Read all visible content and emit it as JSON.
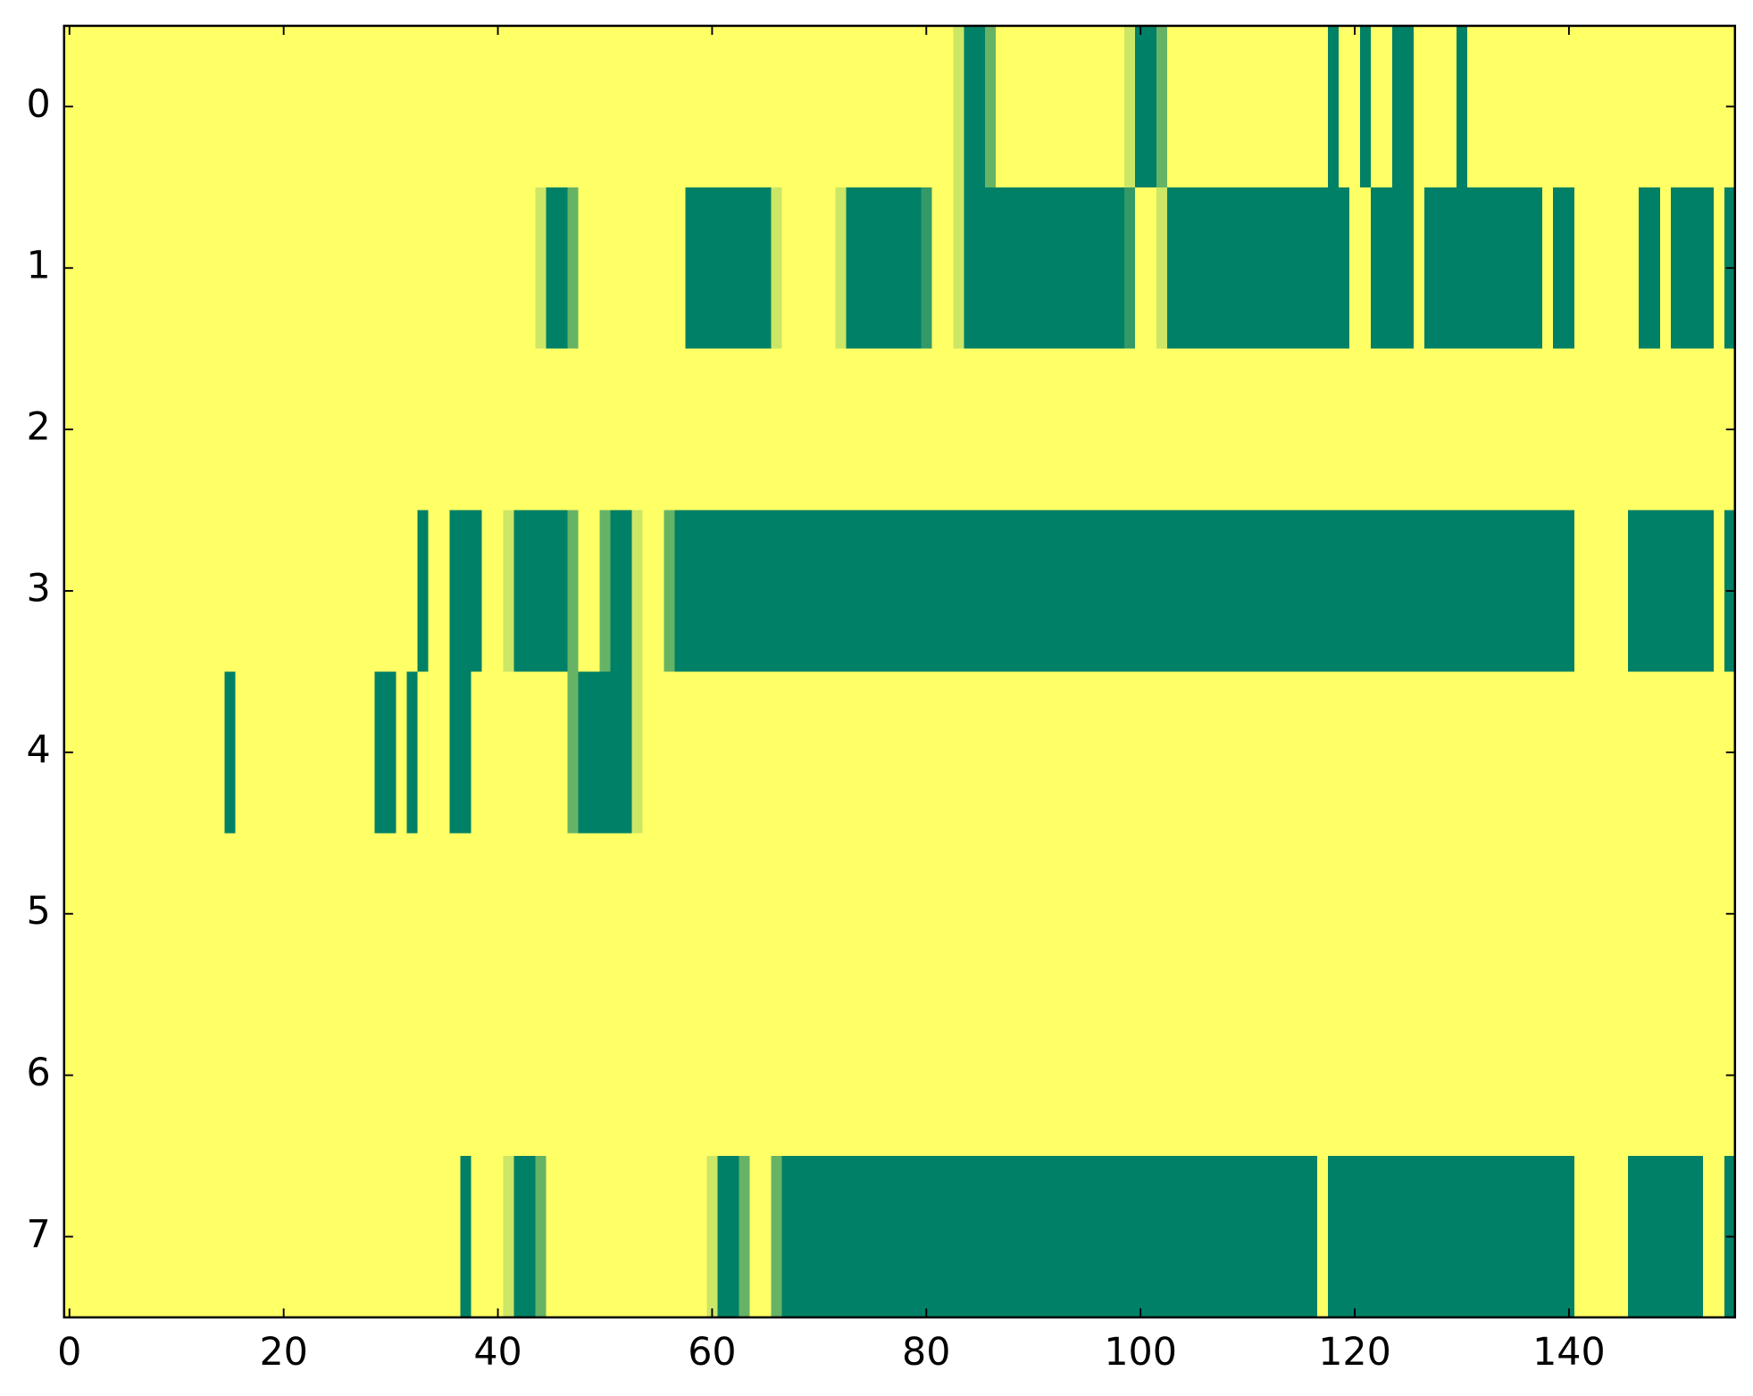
{
  "chart_data": {
    "type": "heatmap",
    "colormap": "summer",
    "xlim": [
      -0.5,
      155.5
    ],
    "ylim": [
      7.5,
      -0.5
    ],
    "xticks": [
      0,
      20,
      40,
      60,
      80,
      100,
      120,
      140
    ],
    "yticks": [
      0,
      1,
      2,
      3,
      4,
      5,
      6,
      7
    ],
    "values": [
      [
        1,
        1,
        1,
        1,
        1,
        1,
        1,
        1,
        1,
        1,
        1,
        1,
        1,
        1,
        1,
        1,
        1,
        1,
        1,
        1,
        1,
        1,
        1,
        1,
        1,
        1,
        1,
        1,
        1,
        1,
        1,
        1,
        1,
        1,
        1,
        1,
        1,
        1,
        1,
        1,
        1,
        1,
        1,
        1,
        1,
        1,
        1,
        1,
        1,
        1,
        1,
        1,
        1,
        1,
        1,
        1,
        1,
        1,
        1,
        1,
        1,
        1,
        1,
        1,
        1,
        1,
        1,
        1,
        1,
        1,
        1,
        1,
        1,
        1,
        1,
        1,
        1,
        1,
        1,
        1,
        1,
        1,
        1,
        0.8,
        0,
        0,
        0.4,
        1,
        1,
        1,
        1,
        1,
        1,
        1,
        1,
        1,
        1,
        1,
        1,
        0.8,
        0,
        0,
        0.4,
        1,
        1,
        1,
        1,
        1,
        1,
        1,
        1,
        1,
        1,
        1,
        1,
        1,
        1,
        1,
        0,
        1,
        1,
        0,
        1,
        1,
        0,
        0,
        1,
        1,
        1,
        1,
        0,
        1,
        1,
        1,
        1,
        1,
        1,
        1,
        1,
        1,
        1,
        1,
        1,
        1,
        1,
        1,
        1,
        1,
        1,
        1,
        1,
        1,
        1,
        1,
        1,
        1
      ],
      [
        1,
        1,
        1,
        1,
        1,
        1,
        1,
        1,
        1,
        1,
        1,
        1,
        1,
        1,
        1,
        1,
        1,
        1,
        1,
        1,
        1,
        1,
        1,
        1,
        1,
        1,
        1,
        1,
        1,
        1,
        1,
        1,
        1,
        1,
        1,
        1,
        1,
        1,
        1,
        1,
        1,
        1,
        1,
        1,
        0.8,
        0,
        0,
        0.4,
        1,
        1,
        1,
        1,
        1,
        1,
        1,
        1,
        1,
        1,
        0,
        0,
        0,
        0,
        0,
        0,
        0,
        0,
        0.8,
        1,
        1,
        1,
        1,
        1,
        0.8,
        0,
        0,
        0,
        0,
        0,
        0,
        0,
        0.2,
        1,
        1,
        0.8,
        0,
        0,
        0,
        0,
        0,
        0,
        0,
        0,
        0,
        0,
        0,
        0,
        0,
        0,
        0,
        0.2,
        1,
        1,
        0.8,
        0,
        0,
        0,
        0,
        0,
        0,
        0,
        0,
        0,
        0,
        0,
        0,
        0,
        0,
        0,
        0,
        0,
        1,
        1,
        0,
        0,
        0,
        0,
        1,
        0,
        0,
        0,
        0,
        0,
        0,
        0,
        0,
        0,
        0,
        0,
        1,
        0,
        0,
        1,
        1,
        1,
        1,
        1,
        1,
        0,
        0,
        1,
        0,
        0,
        0,
        0,
        1,
        0
      ],
      [
        1,
        1,
        1,
        1,
        1,
        1,
        1,
        1,
        1,
        1,
        1,
        1,
        1,
        1,
        1,
        1,
        1,
        1,
        1,
        1,
        1,
        1,
        1,
        1,
        1,
        1,
        1,
        1,
        1,
        1,
        1,
        1,
        1,
        1,
        1,
        1,
        1,
        1,
        1,
        1,
        1,
        1,
        1,
        1,
        1,
        1,
        1,
        1,
        1,
        1,
        1,
        1,
        1,
        1,
        1,
        1,
        1,
        1,
        1,
        1,
        1,
        1,
        1,
        1,
        1,
        1,
        1,
        1,
        1,
        1,
        1,
        1,
        1,
        1,
        1,
        1,
        1,
        1,
        1,
        1,
        1,
        1,
        1,
        1,
        1,
        1,
        1,
        1,
        1,
        1,
        1,
        1,
        1,
        1,
        1,
        1,
        1,
        1,
        1,
        1,
        1,
        1,
        1,
        1,
        1,
        1,
        1,
        1,
        1,
        1,
        1,
        1,
        1,
        1,
        1,
        1,
        1,
        1,
        1,
        1,
        1,
        1,
        1,
        1,
        1,
        1,
        1,
        1,
        1,
        1,
        1,
        1,
        1,
        1,
        1,
        1,
        1,
        1,
        1,
        1,
        1,
        1,
        1,
        1,
        1,
        1,
        1,
        1,
        1,
        1,
        1,
        1,
        1,
        1,
        1,
        1
      ],
      [
        1,
        1,
        1,
        1,
        1,
        1,
        1,
        1,
        1,
        1,
        1,
        1,
        1,
        1,
        1,
        1,
        1,
        1,
        1,
        1,
        1,
        1,
        1,
        1,
        1,
        1,
        1,
        1,
        1,
        1,
        1,
        1,
        1,
        0,
        1,
        1,
        0,
        0,
        0,
        1,
        1,
        0.8,
        0,
        0,
        0,
        0,
        0,
        0.4,
        1,
        1,
        0.4,
        0,
        0,
        0.8,
        1,
        1,
        0.4,
        0,
        0,
        0,
        0,
        0,
        0,
        0,
        0,
        0,
        0,
        0,
        0,
        0,
        0,
        0,
        0,
        0,
        0,
        0,
        0,
        0,
        0,
        0,
        0,
        0,
        0,
        0,
        0,
        0,
        0,
        0,
        0,
        0,
        0,
        0,
        0,
        0,
        0,
        0,
        0,
        0,
        0,
        0,
        0,
        0,
        0,
        0,
        0,
        0,
        0,
        0,
        0,
        0,
        0,
        0,
        0,
        0,
        0,
        0,
        0,
        0,
        0,
        0,
        0,
        0,
        0,
        0,
        0,
        0,
        0,
        0,
        0,
        0,
        0,
        0,
        0,
        0,
        0,
        0,
        0,
        0,
        0,
        0,
        0,
        1,
        1,
        1,
        1,
        1,
        0,
        0,
        0,
        0,
        0,
        0,
        0,
        0,
        1,
        0
      ],
      [
        1,
        1,
        1,
        1,
        1,
        1,
        1,
        1,
        1,
        1,
        1,
        1,
        1,
        1,
        1,
        0,
        1,
        1,
        1,
        1,
        1,
        1,
        1,
        1,
        1,
        1,
        1,
        1,
        1,
        0,
        0,
        1,
        0,
        1,
        1,
        1,
        0,
        0,
        1,
        1,
        1,
        1,
        1,
        1,
        1,
        1,
        1,
        0.4,
        0,
        0,
        0,
        0,
        0,
        0.8,
        1,
        1,
        1,
        1,
        1,
        1,
        1,
        1,
        1,
        1,
        1,
        1,
        1,
        1,
        1,
        1,
        1,
        1,
        1,
        1,
        1,
        1,
        1,
        1,
        1,
        1,
        1,
        1,
        1,
        1,
        1,
        1,
        1,
        1,
        1,
        1,
        1,
        1,
        1,
        1,
        1,
        1,
        1,
        1,
        1,
        1,
        1,
        1,
        1,
        1,
        1,
        1,
        1,
        1,
        1,
        1,
        1,
        1,
        1,
        1,
        1,
        1,
        1,
        1,
        1,
        1,
        1,
        1,
        1,
        1,
        1,
        1,
        1,
        1,
        1,
        1,
        1,
        1,
        1,
        1,
        1,
        1,
        1,
        1,
        1,
        1,
        1,
        1,
        1,
        1,
        1,
        1,
        1,
        1,
        1,
        1,
        1,
        1,
        1,
        1,
        1,
        1
      ],
      [
        1,
        1,
        1,
        1,
        1,
        1,
        1,
        1,
        1,
        1,
        1,
        1,
        1,
        1,
        1,
        1,
        1,
        1,
        1,
        1,
        1,
        1,
        1,
        1,
        1,
        1,
        1,
        1,
        1,
        1,
        1,
        1,
        1,
        1,
        1,
        1,
        1,
        1,
        1,
        1,
        1,
        1,
        1,
        1,
        1,
        1,
        1,
        1,
        1,
        1,
        1,
        1,
        1,
        1,
        1,
        1,
        1,
        1,
        1,
        1,
        1,
        1,
        1,
        1,
        1,
        1,
        1,
        1,
        1,
        1,
        1,
        1,
        1,
        1,
        1,
        1,
        1,
        1,
        1,
        1,
        1,
        1,
        1,
        1,
        1,
        1,
        1,
        1,
        1,
        1,
        1,
        1,
        1,
        1,
        1,
        1,
        1,
        1,
        1,
        1,
        1,
        1,
        1,
        1,
        1,
        1,
        1,
        1,
        1,
        1,
        1,
        1,
        1,
        1,
        1,
        1,
        1,
        1,
        1,
        1,
        1,
        1,
        1,
        1,
        1,
        1,
        1,
        1,
        1,
        1,
        1,
        1,
        1,
        1,
        1,
        1,
        1,
        1,
        1,
        1,
        1,
        1,
        1,
        1,
        1,
        1,
        1,
        1,
        1,
        1,
        1,
        1,
        1,
        1,
        1,
        1
      ],
      [
        1,
        1,
        1,
        1,
        1,
        1,
        1,
        1,
        1,
        1,
        1,
        1,
        1,
        1,
        1,
        1,
        1,
        1,
        1,
        1,
        1,
        1,
        1,
        1,
        1,
        1,
        1,
        1,
        1,
        1,
        1,
        1,
        1,
        1,
        1,
        1,
        1,
        1,
        1,
        1,
        1,
        1,
        1,
        1,
        1,
        1,
        1,
        1,
        1,
        1,
        1,
        1,
        1,
        1,
        1,
        1,
        1,
        1,
        1,
        1,
        1,
        1,
        1,
        1,
        1,
        1,
        1,
        1,
        1,
        1,
        1,
        1,
        1,
        1,
        1,
        1,
        1,
        1,
        1,
        1,
        1,
        1,
        1,
        1,
        1,
        1,
        1,
        1,
        1,
        1,
        1,
        1,
        1,
        1,
        1,
        1,
        1,
        1,
        1,
        1,
        1,
        1,
        1,
        1,
        1,
        1,
        1,
        1,
        1,
        1,
        1,
        1,
        1,
        1,
        1,
        1,
        1,
        1,
        1,
        1,
        1,
        1,
        1,
        1,
        1,
        1,
        1,
        1,
        1,
        1,
        1,
        1,
        1,
        1,
        1,
        1,
        1,
        1,
        1,
        1,
        1,
        1,
        1,
        1,
        1,
        1,
        1,
        1,
        1,
        1,
        1,
        1,
        1,
        1,
        1,
        1
      ],
      [
        1,
        1,
        1,
        1,
        1,
        1,
        1,
        1,
        1,
        1,
        1,
        1,
        1,
        1,
        1,
        1,
        1,
        1,
        1,
        1,
        1,
        1,
        1,
        1,
        1,
        1,
        1,
        1,
        1,
        1,
        1,
        1,
        1,
        1,
        1,
        1,
        1,
        0,
        1,
        1,
        1,
        0.8,
        0,
        0,
        0.4,
        1,
        1,
        1,
        1,
        1,
        1,
        1,
        1,
        1,
        1,
        1,
        1,
        1,
        1,
        1,
        0.8,
        0,
        0,
        0.4,
        1,
        1,
        0.4,
        0,
        0,
        0,
        0,
        0,
        0,
        0,
        0,
        0,
        0,
        0,
        0,
        0,
        0,
        0,
        0,
        0,
        0,
        0,
        0,
        0,
        0,
        0,
        0,
        0,
        0,
        0,
        0,
        0,
        0,
        0,
        0,
        0,
        0,
        0,
        0,
        0,
        0,
        0,
        0,
        0,
        0,
        0,
        0,
        0,
        0,
        0,
        0,
        0,
        0,
        1,
        0,
        0,
        0,
        0,
        0,
        0,
        0,
        0,
        0,
        0,
        0,
        0,
        0,
        0,
        0,
        0,
        0,
        0,
        0,
        0,
        0,
        0,
        0,
        1,
        1,
        1,
        1,
        1,
        0,
        0,
        0,
        0,
        0,
        0,
        0,
        1,
        1,
        0
      ]
    ]
  }
}
